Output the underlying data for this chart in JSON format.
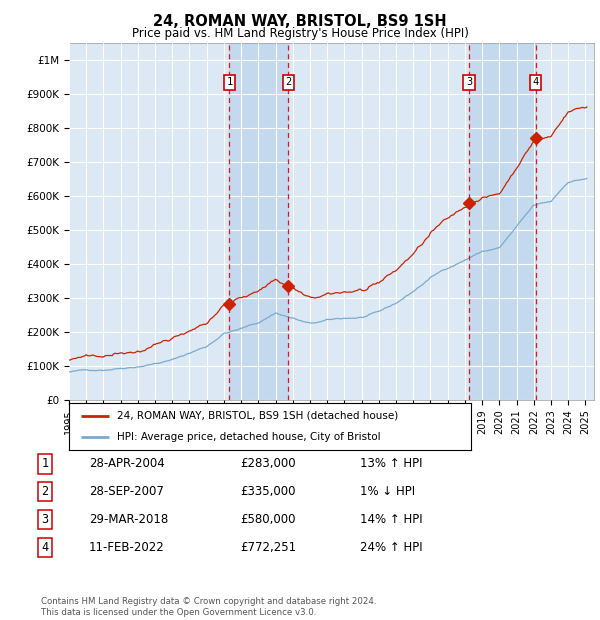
{
  "title": "24, ROMAN WAY, BRISTOL, BS9 1SH",
  "subtitle": "Price paid vs. HM Land Registry's House Price Index (HPI)",
  "ylabel_ticks": [
    "£0",
    "£100K",
    "£200K",
    "£300K",
    "£400K",
    "£500K",
    "£600K",
    "£700K",
    "£800K",
    "£900K",
    "£1M"
  ],
  "ytick_values": [
    0,
    100000,
    200000,
    300000,
    400000,
    500000,
    600000,
    700000,
    800000,
    900000,
    1000000
  ],
  "ylim": [
    0,
    1050000
  ],
  "xlim_start": 1995.0,
  "xlim_end": 2025.5,
  "background_color": "#ffffff",
  "plot_bg_color": "#dce9f5",
  "grid_color": "#ffffff",
  "shade_color": "#c5d9ee",
  "transactions": [
    {
      "label": "1",
      "date": 2004.32,
      "price": 283000
    },
    {
      "label": "2",
      "date": 2007.74,
      "price": 335000
    },
    {
      "label": "3",
      "date": 2018.24,
      "price": 580000
    },
    {
      "label": "4",
      "date": 2022.11,
      "price": 772251
    }
  ],
  "hpi_line_color": "#7aaad0",
  "property_line_color": "#cc2200",
  "legend_entries": [
    "24, ROMAN WAY, BRISTOL, BS9 1SH (detached house)",
    "HPI: Average price, detached house, City of Bristol"
  ],
  "table_rows": [
    [
      "1",
      "28-APR-2004",
      "£283,000",
      "13% ↑ HPI"
    ],
    [
      "2",
      "28-SEP-2007",
      "£335,000",
      "1% ↓ HPI"
    ],
    [
      "3",
      "29-MAR-2018",
      "£580,000",
      "14% ↑ HPI"
    ],
    [
      "4",
      "11-FEB-2022",
      "£772,251",
      "24% ↑ HPI"
    ]
  ],
  "footer": "Contains HM Land Registry data © Crown copyright and database right 2024.\nThis data is licensed under the Open Government Licence v3.0.",
  "xtick_years": [
    1995,
    1996,
    1997,
    1998,
    1999,
    2000,
    2001,
    2002,
    2003,
    2004,
    2005,
    2006,
    2007,
    2008,
    2009,
    2010,
    2011,
    2012,
    2013,
    2014,
    2015,
    2016,
    2017,
    2018,
    2019,
    2020,
    2021,
    2022,
    2023,
    2024,
    2025
  ]
}
